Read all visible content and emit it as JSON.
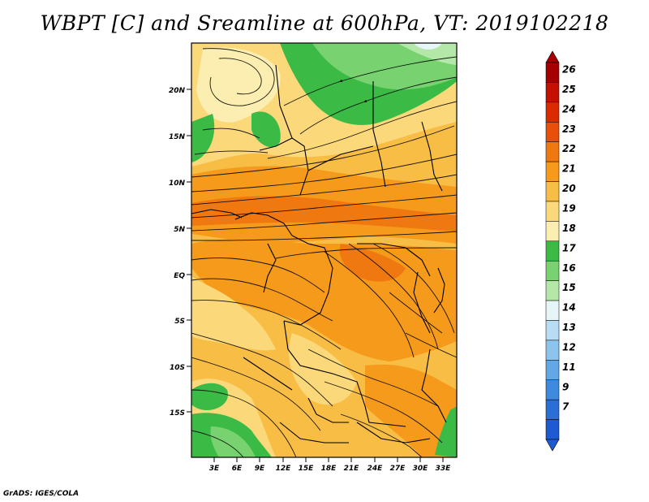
{
  "title": "WBPT [C] and Sreamline at 600hPa, VT: 2019102218",
  "credit": "GrADS: IGES/COLA",
  "map": {
    "lat_labels": [
      "20N",
      "15N",
      "10N",
      "5N",
      "EQ",
      "5S",
      "10S",
      "15S"
    ],
    "lon_labels": [
      "3E",
      "6E",
      "9E",
      "12E",
      "15E",
      "18E",
      "21E",
      "24E",
      "27E",
      "30E",
      "33E"
    ]
  },
  "colorbar": {
    "labels": [
      "26",
      "25",
      "24",
      "23",
      "22",
      "21",
      "20",
      "19",
      "18",
      "17",
      "16",
      "15",
      "14",
      "13",
      "12",
      "11",
      "9",
      "7"
    ],
    "colors": [
      "#a50000",
      "#c41000",
      "#dc2a00",
      "#e8500a",
      "#f07810",
      "#f59a1a",
      "#f8bd45",
      "#fbd87a",
      "#fbeeb0",
      "#3cba46",
      "#78d270",
      "#b4e8a8",
      "#e6f6f8",
      "#b8dcf4",
      "#8cc4ee",
      "#62a8e6",
      "#3e8ade",
      "#2a6ed6",
      "#1e5ad0"
    ],
    "top_color": "#a50000",
    "bottom_color": "#1e5ad0"
  }
}
